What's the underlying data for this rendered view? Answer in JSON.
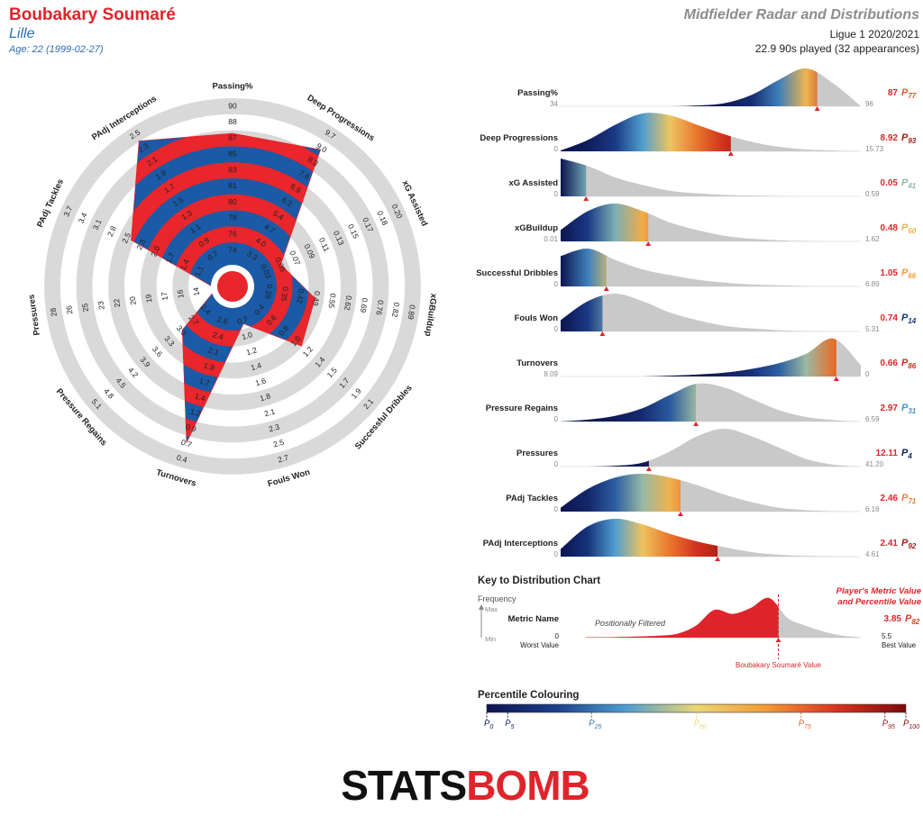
{
  "header": {
    "player": "Boubakary Soumaré",
    "team": "Lille",
    "age": "Age: 22 (1999-02-27)",
    "title": "Midfielder Radar and Distributions",
    "competition": "Ligue 1 2020/2021",
    "minutes": "22.9 90s played (32 appearances)"
  },
  "chart_data": [
    {
      "type": "radar",
      "axes": [
        {
          "name": "Passing%",
          "ticks": [
            74,
            76,
            78,
            80,
            81,
            83,
            85,
            87,
            88,
            90
          ]
        },
        {
          "name": "Deep Progressions",
          "ticks": [
            3.3,
            {
              "value": 4,
              "label": "4.0"
            },
            4.7,
            5.4,
            6.2,
            6.9,
            7.6,
            8.3,
            {
              "value": 9,
              "label": "9.0"
            },
            9.7
          ]
        },
        {
          "name": "xG Assisted",
          "ticks": [
            0.03,
            0.05,
            0.07,
            0.09,
            0.11,
            0.13,
            0.15,
            0.17,
            0.18,
            {
              "value": 0.2,
              "label": "0.20"
            }
          ]
        },
        {
          "name": "xGBuildup",
          "ticks": [
            0.28,
            0.35,
            0.42,
            0.49,
            0.55,
            0.62,
            0.69,
            0.76,
            0.82,
            0.89
          ]
        },
        {
          "name": "Successful Dribbles",
          "ticks": [
            0.4,
            0.6,
            0.8,
            {
              "value": 1,
              "label": "1.0"
            },
            1.2,
            1.4,
            1.5,
            1.7,
            1.9,
            2.1
          ]
        },
        {
          "name": "Fouls Won",
          "ticks": [
            0.7,
            {
              "value": 1,
              "label": "1.0"
            },
            1.2,
            1.4,
            1.6,
            1.8,
            2.1,
            2.3,
            2.5,
            2.7
          ]
        },
        {
          "name": "Turnovers",
          "ticks": [
            2.6,
            2.4,
            2.1,
            1.9,
            1.7,
            1.4,
            1.2,
            0.9,
            0.7,
            0.4
          ]
        },
        {
          "name": "Pressure Regains",
          "ticks": [
            2.4,
            2.7,
            {
              "value": 3,
              "label": "3.0"
            },
            3.3,
            3.6,
            3.9,
            4.2,
            4.5,
            4.8,
            5.1
          ]
        },
        {
          "name": "Pressures",
          "ticks": [
            14,
            16,
            17,
            19,
            20,
            22,
            23,
            25,
            26,
            28
          ]
        },
        {
          "name": "PAdj Tackles",
          "ticks": [
            1.1,
            1.4,
            1.7,
            {
              "value": 2,
              "label": "2.0"
            },
            2.3,
            2.5,
            2.8,
            3.1,
            3.4,
            3.7
          ]
        },
        {
          "name": "PAdj Interceptions",
          "ticks": [
            0.7,
            0.9,
            1.1,
            1.3,
            1.5,
            1.7,
            1.9,
            2.1,
            2.3,
            2.5
          ]
        }
      ]
    },
    {
      "type": "distribution",
      "percentile_symbol": "P",
      "rows": [
        {
          "name": "Passing%",
          "xlim": [
            34,
            96
          ],
          "xticks": [
            34,
            96
          ],
          "value": 87,
          "percentile": 77,
          "density": [
            0,
            0,
            0,
            0,
            0,
            0.02,
            0.08,
            0.3,
            0.7,
            1,
            0.6,
            0
          ]
        },
        {
          "name": "Deep Progressions",
          "xlim": [
            0,
            15.73
          ],
          "xticks": [
            0,
            15.73
          ],
          "value": 8.92,
          "percentile": 93,
          "density": [
            0.02,
            0.3,
            0.7,
            1,
            0.95,
            0.7,
            0.45,
            0.25,
            0.12,
            0.05,
            0.02,
            0
          ]
        },
        {
          "name": "xG Assisted",
          "xlim": [
            0,
            0.59
          ],
          "xticks": [
            0,
            0.59
          ],
          "value": 0.05,
          "percentile": 41,
          "density": [
            1,
            0.8,
            0.5,
            0.3,
            0.15,
            0.08,
            0.04,
            0.02,
            0.01,
            0,
            0,
            0
          ]
        },
        {
          "name": "xGBuildup",
          "xlim": [
            0.01,
            1.62
          ],
          "xticks": [
            0.01,
            1.62
          ],
          "value": 0.48,
          "percentile": 60,
          "density": [
            0.3,
            0.8,
            1,
            0.8,
            0.5,
            0.3,
            0.15,
            0.07,
            0.03,
            0.01,
            0,
            0
          ]
        },
        {
          "name": "Successful Dribbles",
          "xlim": [
            0,
            6.89
          ],
          "xticks": [
            0,
            6.89
          ],
          "value": 1.05,
          "percentile": 66,
          "density": [
            0.8,
            1,
            0.7,
            0.45,
            0.3,
            0.18,
            0.1,
            0.05,
            0.03,
            0.01,
            0,
            0
          ]
        },
        {
          "name": "Fouls Won",
          "xlim": [
            0,
            5.31
          ],
          "xticks": [
            0,
            5.31
          ],
          "value": 0.74,
          "percentile": 14,
          "density": [
            0.3,
            0.8,
            1,
            0.8,
            0.5,
            0.3,
            0.15,
            0.08,
            0.03,
            0.01,
            0,
            0
          ]
        },
        {
          "name": "Turnovers",
          "xlim": [
            8.09,
            0
          ],
          "xticks": [
            8.09,
            0
          ],
          "value": 0.66,
          "percentile": 86,
          "density": [
            0,
            0,
            0,
            0,
            0.02,
            0.05,
            0.1,
            0.2,
            0.35,
            0.6,
            1,
            0.3
          ]
        },
        {
          "name": "Pressure Regains",
          "xlim": [
            0,
            6.59
          ],
          "xticks": [
            0,
            6.59
          ],
          "value": 2.97,
          "percentile": 31,
          "density": [
            0,
            0.05,
            0.15,
            0.35,
            0.7,
            1,
            0.9,
            0.6,
            0.3,
            0.12,
            0.04,
            0
          ]
        },
        {
          "name": "Pressures",
          "xlim": [
            0,
            41.2
          ],
          "xticks": [
            0,
            {
              "value": 41.2,
              "label": "41.20"
            }
          ],
          "value": 12.11,
          "percentile": 4,
          "density": [
            0,
            0,
            0.02,
            0.1,
            0.4,
            0.8,
            1,
            0.8,
            0.5,
            0.2,
            0.05,
            0
          ]
        },
        {
          "name": "PAdj Tackles",
          "xlim": [
            0,
            6.16
          ],
          "xticks": [
            0,
            6.16
          ],
          "value": 2.46,
          "percentile": 71,
          "density": [
            0.1,
            0.6,
            0.9,
            1,
            0.9,
            0.7,
            0.45,
            0.25,
            0.1,
            0.04,
            0.01,
            0
          ]
        },
        {
          "name": "PAdj Interceptions",
          "xlim": [
            0,
            4.61
          ],
          "xticks": [
            0,
            4.61
          ],
          "value": 2.41,
          "percentile": 92,
          "density": [
            0.2,
            0.8,
            1,
            0.85,
            0.6,
            0.4,
            0.25,
            0.12,
            0.05,
            0.02,
            0.01,
            0
          ]
        }
      ]
    },
    {
      "type": "distribution-key",
      "title": "Key to Distribution Chart",
      "y_label": "Frequency",
      "y_max": "Max",
      "y_min": "Min",
      "metric": "Metric Name",
      "filter": "Positionally Filtered",
      "xlim": [
        0,
        5.5
      ],
      "xticks": [
        0,
        5.5
      ],
      "worst": "Worst Value",
      "best": "Best Value",
      "value": 3.85,
      "percentile": 82,
      "color": "#e0242b",
      "callout": [
        "Player's Metric Value",
        "and Percentile Value"
      ],
      "marker_label": "Boubakary Soumaré Value",
      "density": [
        0.01,
        0.01,
        0.02,
        0.03,
        0.05,
        0.1,
        0.3,
        0.7,
        0.6,
        0.75,
        1,
        0.5,
        0.3,
        0.15,
        0.05,
        0.01
      ]
    },
    {
      "type": "colour-scale",
      "title": "Percentile Colouring",
      "symbol": "P",
      "ticks": [
        0,
        5,
        25,
        50,
        75,
        95,
        100
      ],
      "colors": [
        "#0c1450",
        "#1c3f8c",
        "#4f9fd0",
        "#ecd672",
        "#f29a35",
        "#d8341f",
        "#7d0a0a"
      ]
    }
  ],
  "logo": [
    "STATS",
    "BOMB"
  ]
}
